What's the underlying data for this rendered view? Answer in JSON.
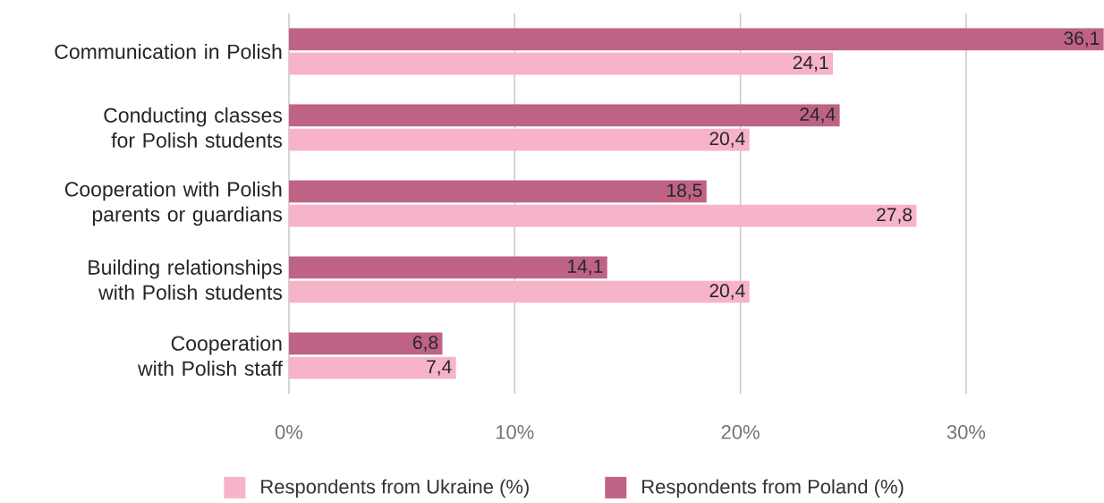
{
  "chart_data": {
    "type": "bar",
    "orientation": "horizontal",
    "categories": [
      "Communication in Polish",
      "Conducting classes for Polish students",
      "Cooperation with Polish parents or guardians",
      "Building relationships with Polish students",
      "Cooperation with Polish staff"
    ],
    "series": [
      {
        "name": "Respondents from Ukraine (%)",
        "color": "#f7b3c8",
        "values": [
          24.1,
          20.4,
          27.8,
          20.4,
          7.4
        ],
        "value_labels": [
          "24,1",
          "20,4",
          "27,8",
          "20,4",
          "7,4"
        ]
      },
      {
        "name": "Respondents from Poland (%)",
        "color": "#be6386",
        "values": [
          36.1,
          24.4,
          18.5,
          14.1,
          6.8
        ],
        "value_labels": [
          "36,1",
          "24,4",
          "18,5",
          "14,1",
          "6,8"
        ]
      }
    ],
    "xlim": [
      0,
      36.1
    ],
    "xticks": [
      {
        "value": 0,
        "label": "0%"
      },
      {
        "value": 10,
        "label": "10%"
      },
      {
        "value": 20,
        "label": "20%"
      },
      {
        "value": 30,
        "label": "30%"
      }
    ],
    "grid": "x",
    "legend": "bottom"
  }
}
